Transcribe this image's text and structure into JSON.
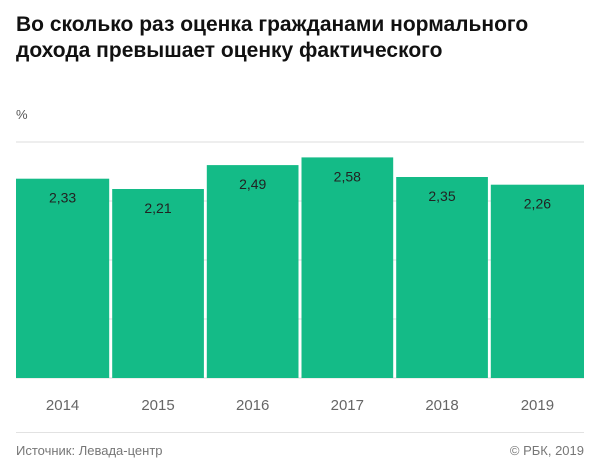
{
  "header": {
    "title": "Во сколько раз оценка гражданами нормального дохода превышает оценку фактического",
    "unit": "%"
  },
  "footer": {
    "source": "Источник: Левада-центр",
    "copyright": "© РБК, 2019"
  },
  "colors": {
    "bar": "#14bb87",
    "gridline": "#dddddd",
    "label": "#222222",
    "tick": "#666666"
  },
  "chart_data": {
    "type": "bar",
    "title": "Во сколько раз оценка гражданами нормального дохода превышает оценку фактического",
    "xlabel": "",
    "ylabel": "%",
    "categories": [
      "2014",
      "2015",
      "2016",
      "2017",
      "2018",
      "2019"
    ],
    "values": [
      2.33,
      2.21,
      2.49,
      2.58,
      2.35,
      2.26
    ],
    "value_labels": [
      "2,33",
      "2,21",
      "2,49",
      "2,58",
      "2,35",
      "2,26"
    ],
    "ylim": [
      0,
      2.9
    ],
    "grid": true,
    "legend": "none"
  }
}
